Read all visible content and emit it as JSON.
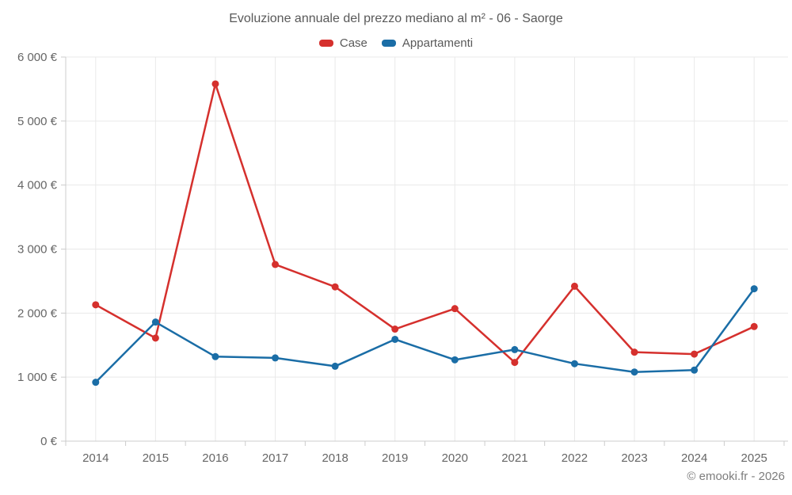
{
  "title": "Evoluzione annuale del prezzo mediano al m² - 06 - Saorge",
  "footer": "© emooki.fr - 2026",
  "colors": {
    "case_red": "#d5302d",
    "appartamenti_blue": "#1a6da6",
    "grid": "#e9e9e9",
    "axis": "#cccccc",
    "tick_text": "#666666",
    "title_text": "#595959"
  },
  "chart_data": {
    "type": "line",
    "title": "Evoluzione annuale del prezzo mediano al m² - 06 - Saorge",
    "categories": [
      "2014",
      "2015",
      "2016",
      "2017",
      "2018",
      "2019",
      "2020",
      "2021",
      "2022",
      "2023",
      "2024",
      "2025"
    ],
    "series": [
      {
        "name": "Case",
        "color": "#d5302d",
        "values": [
          2130,
          1610,
          5580,
          2760,
          2410,
          1750,
          2070,
          1230,
          2420,
          1390,
          1360,
          1790
        ]
      },
      {
        "name": "Appartamenti",
        "color": "#1a6da6",
        "values": [
          920,
          1860,
          1320,
          1300,
          1170,
          1590,
          1270,
          1430,
          1210,
          1080,
          1110,
          2380
        ]
      }
    ],
    "xlabel": "",
    "ylabel": "",
    "ylim": [
      0,
      6000
    ],
    "ytick_step": 1000,
    "ytick_labels": [
      "0 €",
      "1 000 €",
      "2 000 €",
      "3 000 €",
      "4 000 €",
      "5 000 €",
      "6 000 €"
    ],
    "grid": true,
    "legend_position": "top",
    "currency": "€"
  }
}
